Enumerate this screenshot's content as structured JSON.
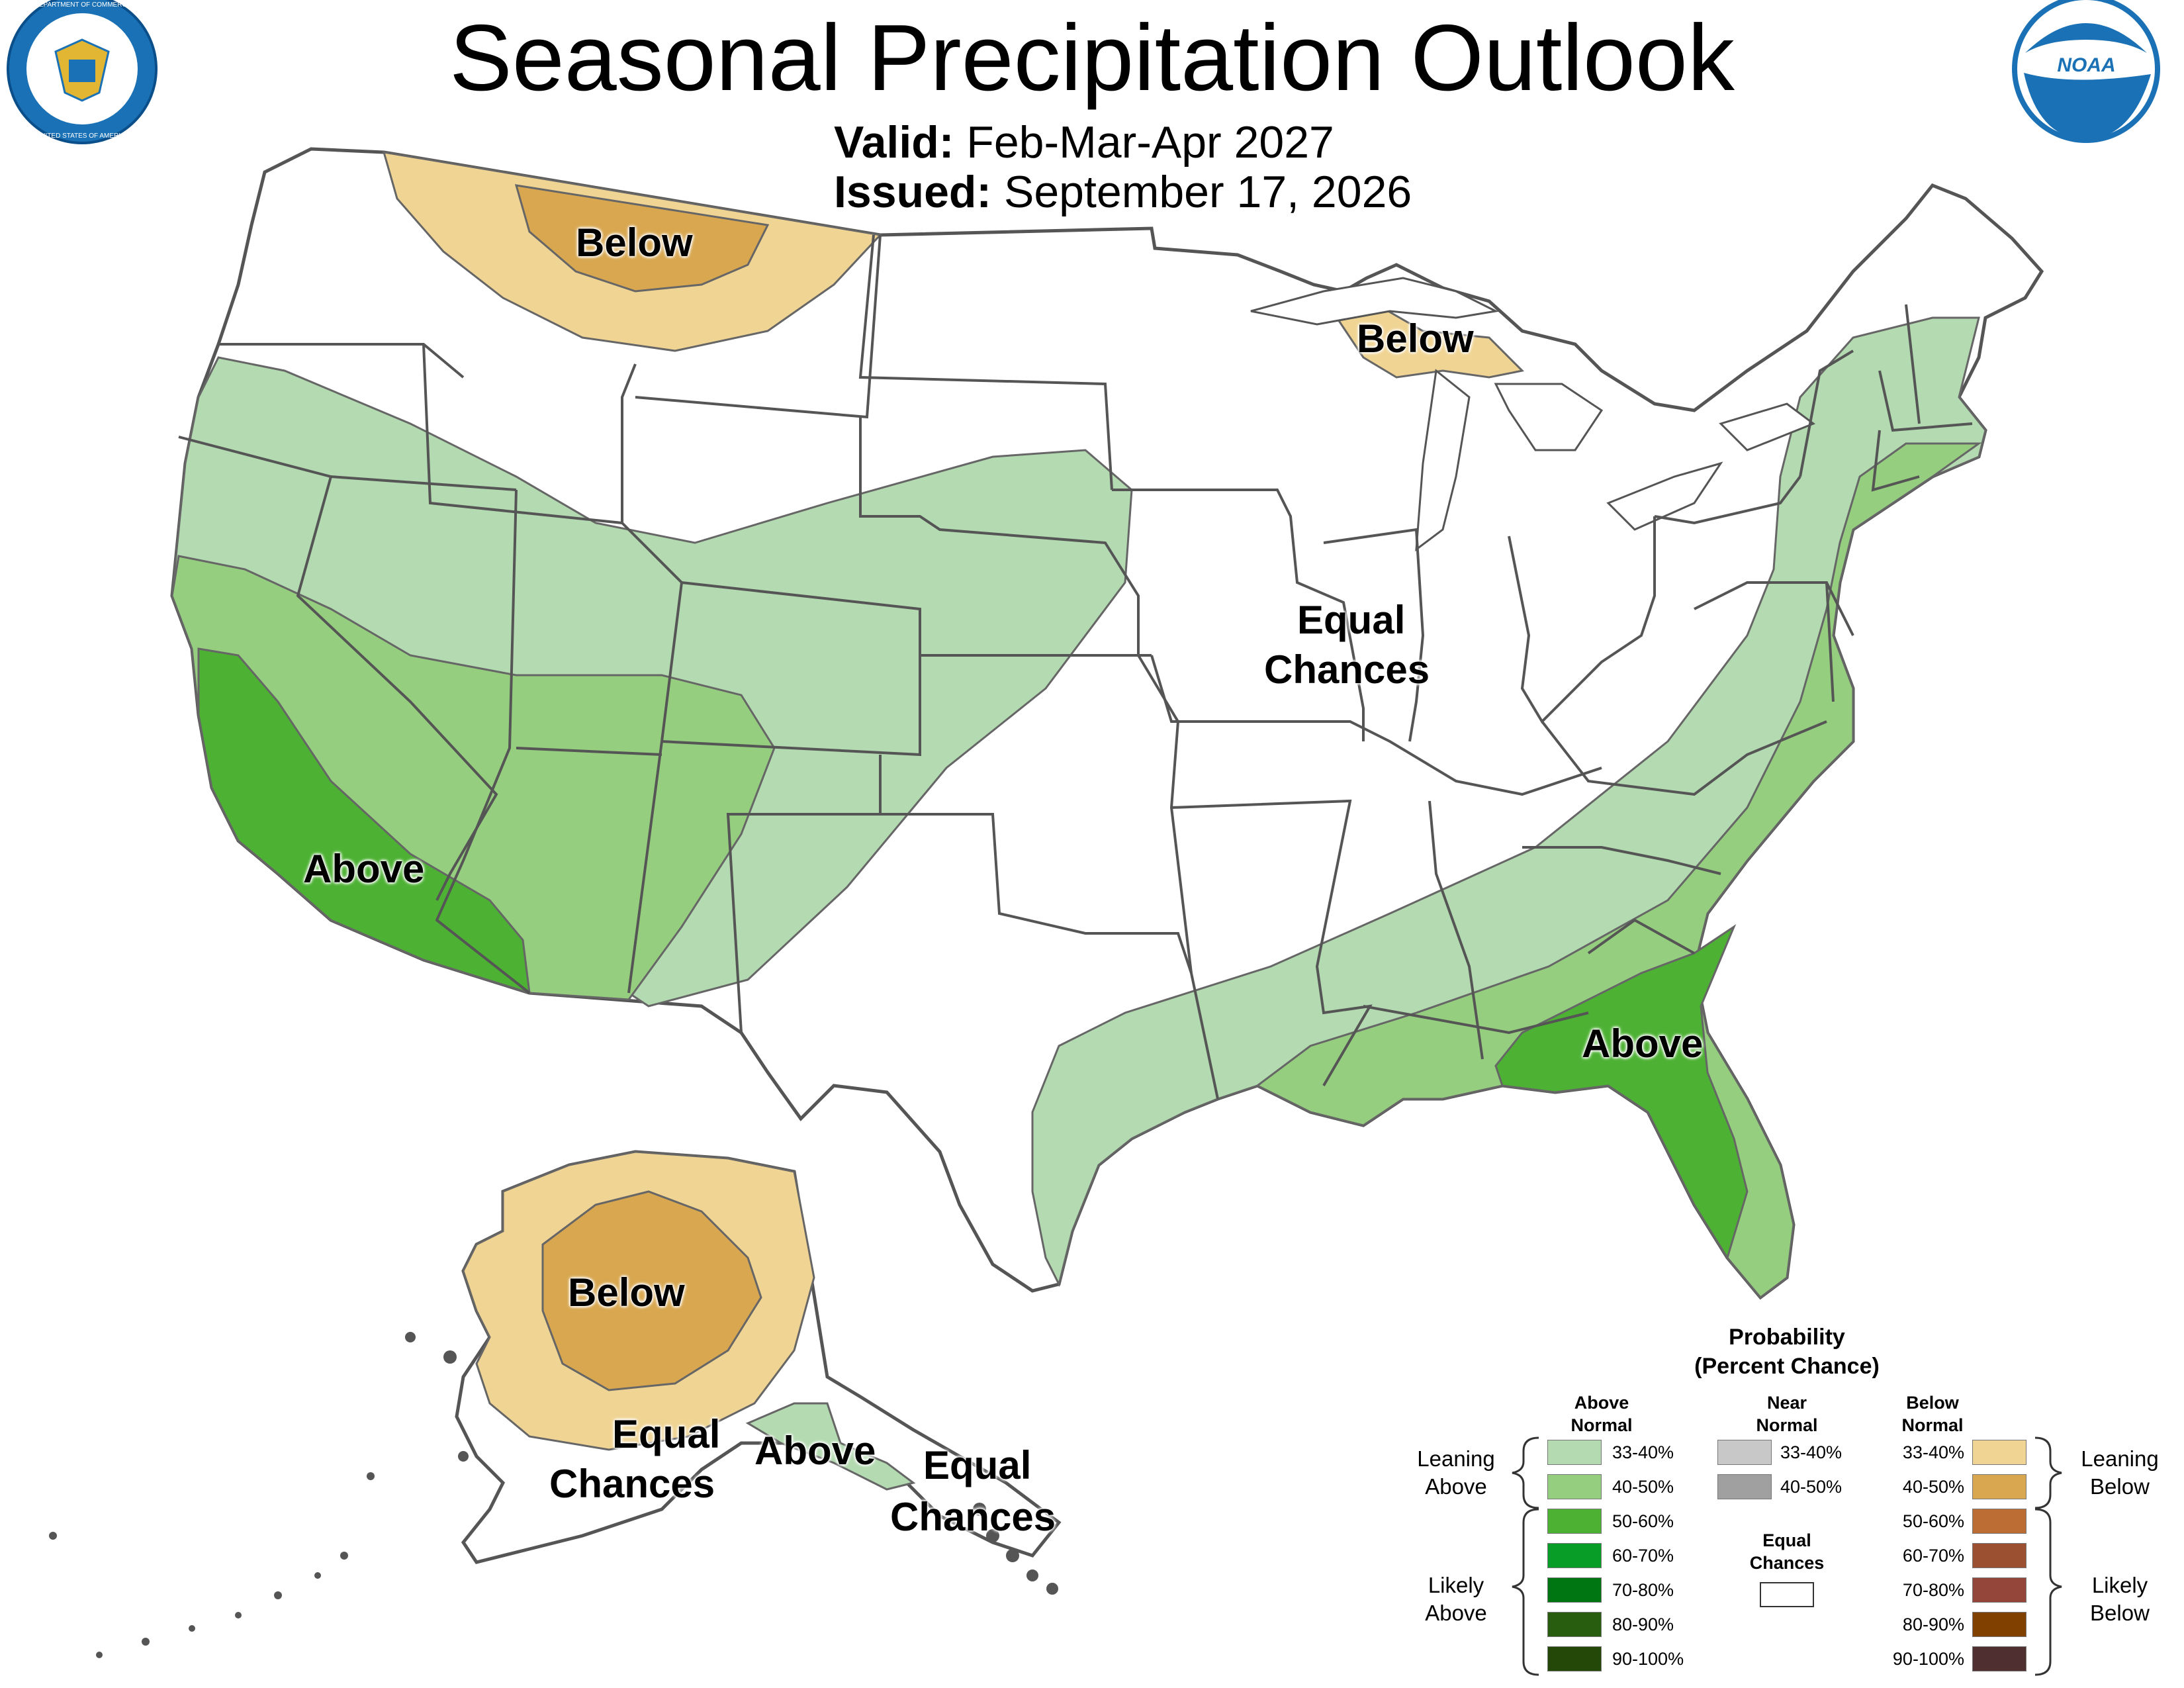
{
  "header": {
    "title": "Seasonal Precipitation Outlook",
    "valid_label": "Valid:",
    "valid_value": "Feb-Mar-Apr 2027",
    "issued_label": "Issued:",
    "issued_value": "September 17, 2026"
  },
  "seals": {
    "left": "UNITED STATES OF AMERICA",
    "left_top": "DEPARTMENT OF COMMERCE",
    "right": "NOAA"
  },
  "map_labels": {
    "conus_below_north": "Below",
    "conus_below_michigan": "Below",
    "conus_equal_line1": "Equal",
    "conus_equal_line2": "Chances",
    "conus_above_west": "Above",
    "conus_above_southeast": "Above",
    "ak_below": "Below",
    "ak_equal_line1": "Equal",
    "ak_equal_line2": "Chances",
    "ak_above": "Above",
    "ak_se_equal_line1": "Equal",
    "ak_se_equal_line2": "Chances"
  },
  "legend": {
    "title_line1": "Probability",
    "title_line2": "(Percent Chance)",
    "above_head_line1": "Above",
    "above_head_line2": "Normal",
    "near_head_line1": "Near",
    "near_head_line2": "Normal",
    "below_head_line1": "Below",
    "below_head_line2": "Normal",
    "equal_line1": "Equal",
    "equal_line2": "Chances",
    "leaning_above_line1": "Leaning",
    "leaning_above_line2": "Above",
    "likely_above_line1": "Likely",
    "likely_above_line2": "Above",
    "leaning_below_line1": "Leaning",
    "leaning_below_line2": "Below",
    "likely_below_line1": "Likely",
    "likely_below_line2": "Below",
    "above": [
      {
        "range": "33-40%",
        "color": "#b3dab0"
      },
      {
        "range": "40-50%",
        "color": "#96ce7f"
      },
      {
        "range": "50-60%",
        "color": "#4db233"
      },
      {
        "range": "60-70%",
        "color": "#079d26"
      },
      {
        "range": "70-80%",
        "color": "#007612"
      },
      {
        "range": "80-90%",
        "color": "#285d0f"
      },
      {
        "range": "90-100%",
        "color": "#234808"
      }
    ],
    "near": [
      {
        "range": "33-40%",
        "color": "#c8c8c8"
      },
      {
        "range": "40-50%",
        "color": "#a0a0a0"
      }
    ],
    "below": [
      {
        "range": "33-40%",
        "color": "#f0d493"
      },
      {
        "range": "40-50%",
        "color": "#d8a750"
      },
      {
        "range": "50-60%",
        "color": "#bb6d33"
      },
      {
        "range": "60-70%",
        "color": "#9b5031"
      },
      {
        "range": "70-80%",
        "color": "#934639"
      },
      {
        "range": "80-90%",
        "color": "#804000"
      },
      {
        "range": "90-100%",
        "color": "#4f2f2f"
      }
    ]
  }
}
